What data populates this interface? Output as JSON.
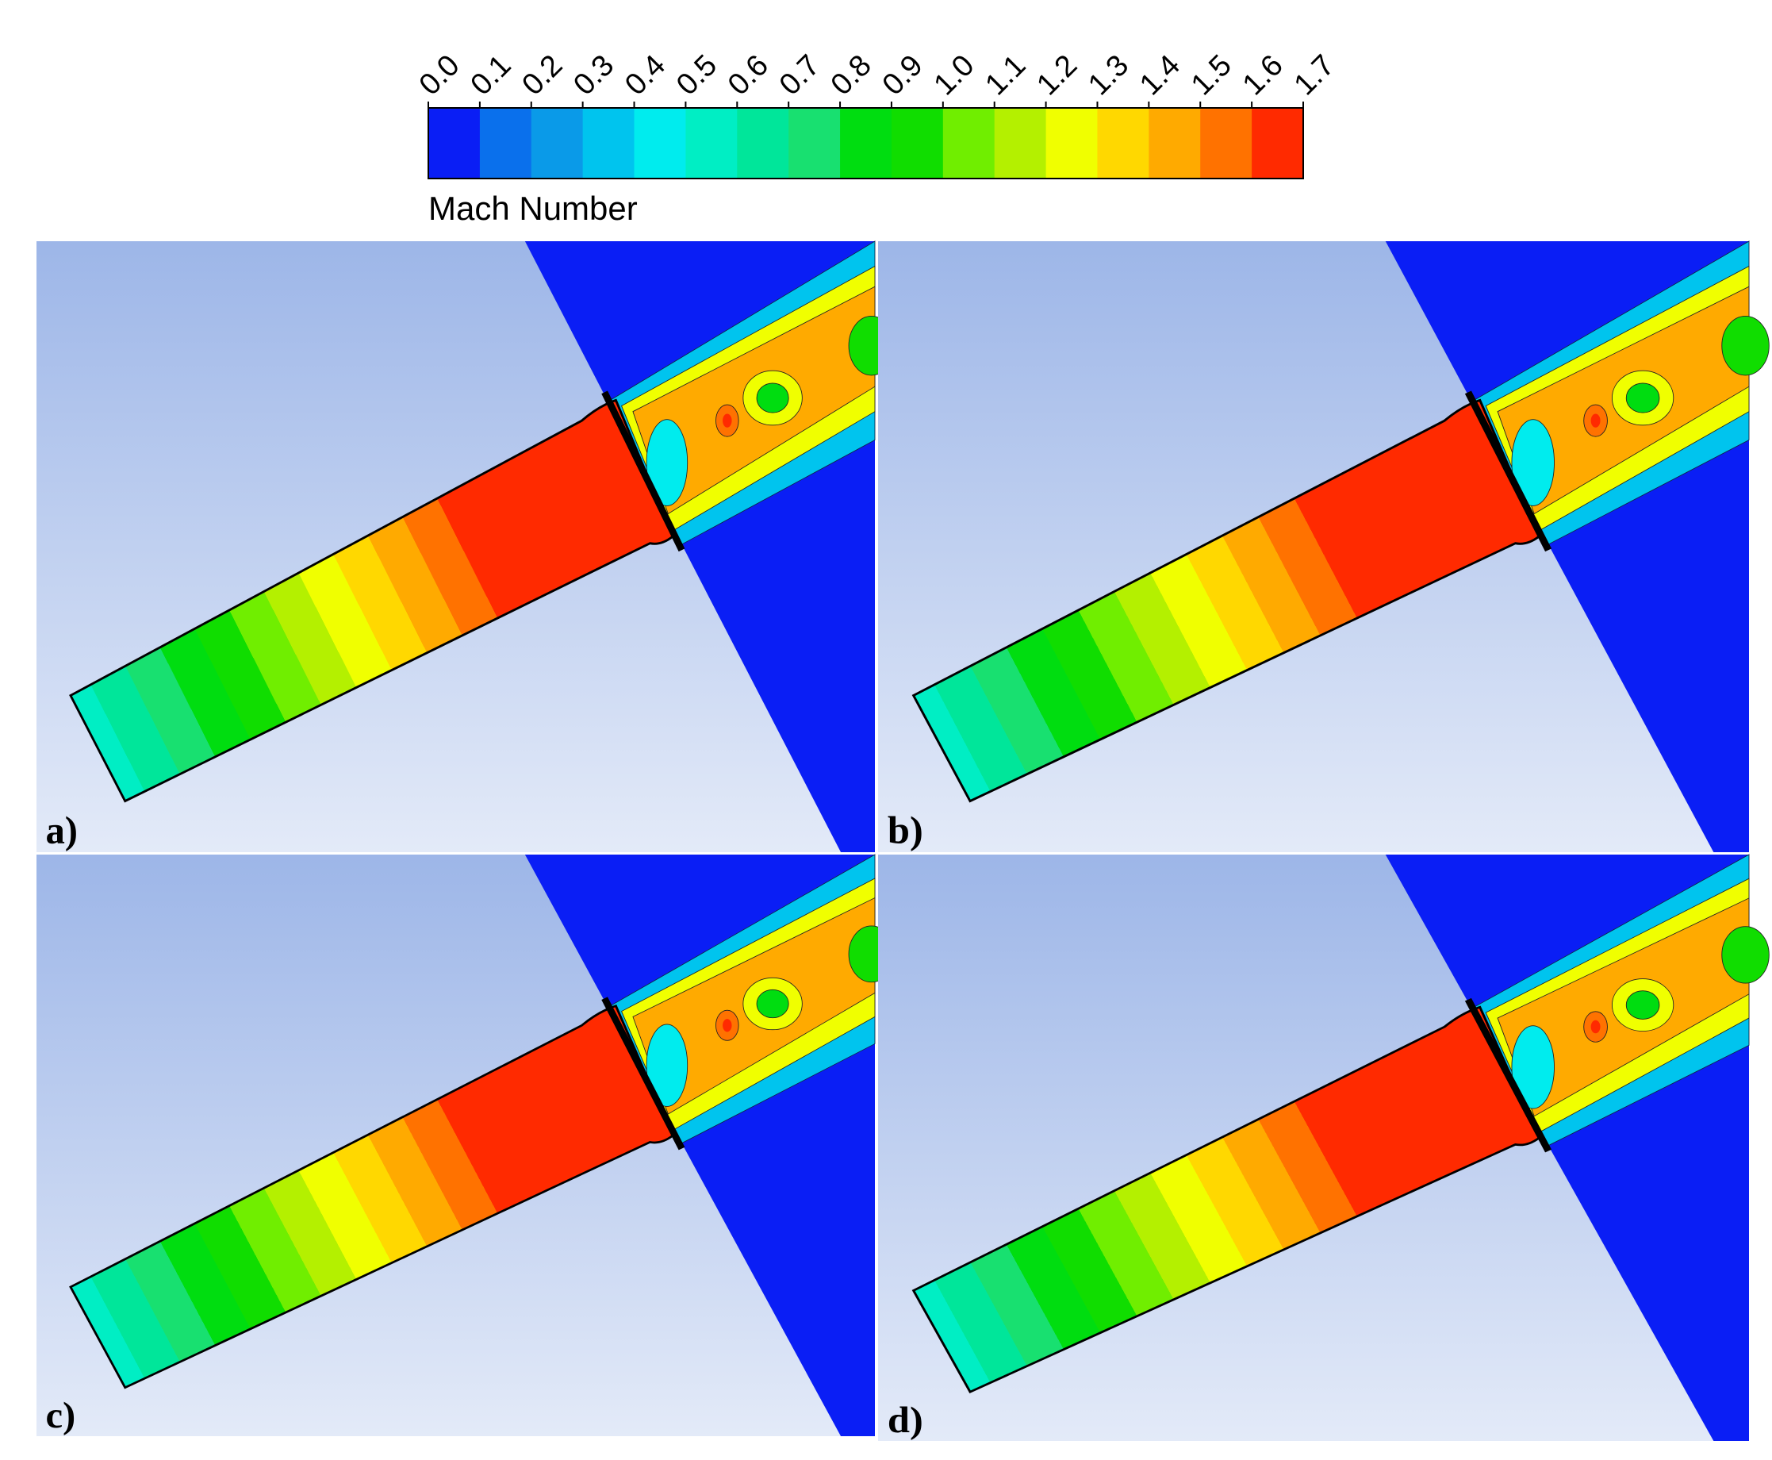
{
  "colorbar": {
    "title": "Mach Number",
    "ticks": [
      "0.0",
      "0.1",
      "0.2",
      "0.3",
      "0.4",
      "0.5",
      "0.6",
      "0.7",
      "0.8",
      "0.9",
      "1.0",
      "1.1",
      "1.2",
      "1.3",
      "1.4",
      "1.5",
      "1.6",
      "1.7"
    ],
    "colors": [
      "#0a1ef5",
      "#0a70ec",
      "#0a9ae8",
      "#00c4ee",
      "#00ecee",
      "#00eec4",
      "#00e69a",
      "#18e070",
      "#00dd10",
      "#10dd00",
      "#70ee00",
      "#b4f000",
      "#f0ff00",
      "#ffd800",
      "#ffaa00",
      "#ff7200",
      "#ff2a00"
    ]
  },
  "panels": [
    {
      "label": "a)"
    },
    {
      "label": "b)"
    },
    {
      "label": "c)"
    },
    {
      "label": "d)"
    }
  ]
}
